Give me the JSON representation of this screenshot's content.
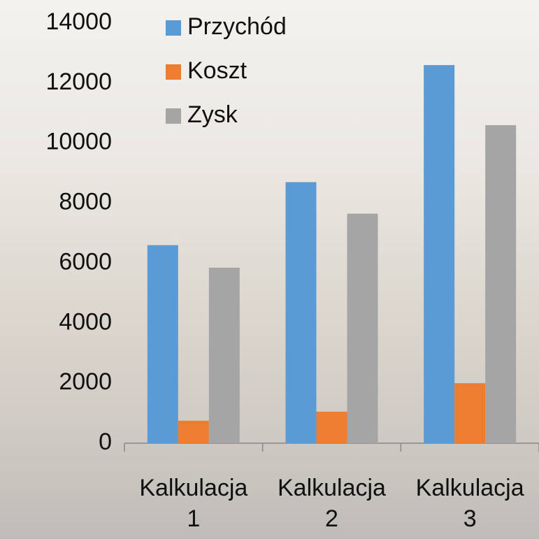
{
  "chart_data": {
    "type": "bar",
    "categories": [
      "Kalkulacja 1",
      "Kalkulacja 2",
      "Kalkulacja 3"
    ],
    "series": [
      {
        "name": "Przychód",
        "color": "#5b9bd5",
        "values": [
          6600,
          8700,
          12600
        ]
      },
      {
        "name": "Koszt",
        "color": "#ed7d31",
        "values": [
          750,
          1050,
          2000
        ]
      },
      {
        "name": "Zysk",
        "color": "#a5a5a5",
        "values": [
          5850,
          7650,
          10600
        ]
      }
    ],
    "ylim": [
      0,
      14000
    ],
    "yticks": [
      0,
      2000,
      4000,
      6000,
      8000,
      10000,
      12000,
      14000
    ],
    "grid": false,
    "legend": "top-left"
  }
}
